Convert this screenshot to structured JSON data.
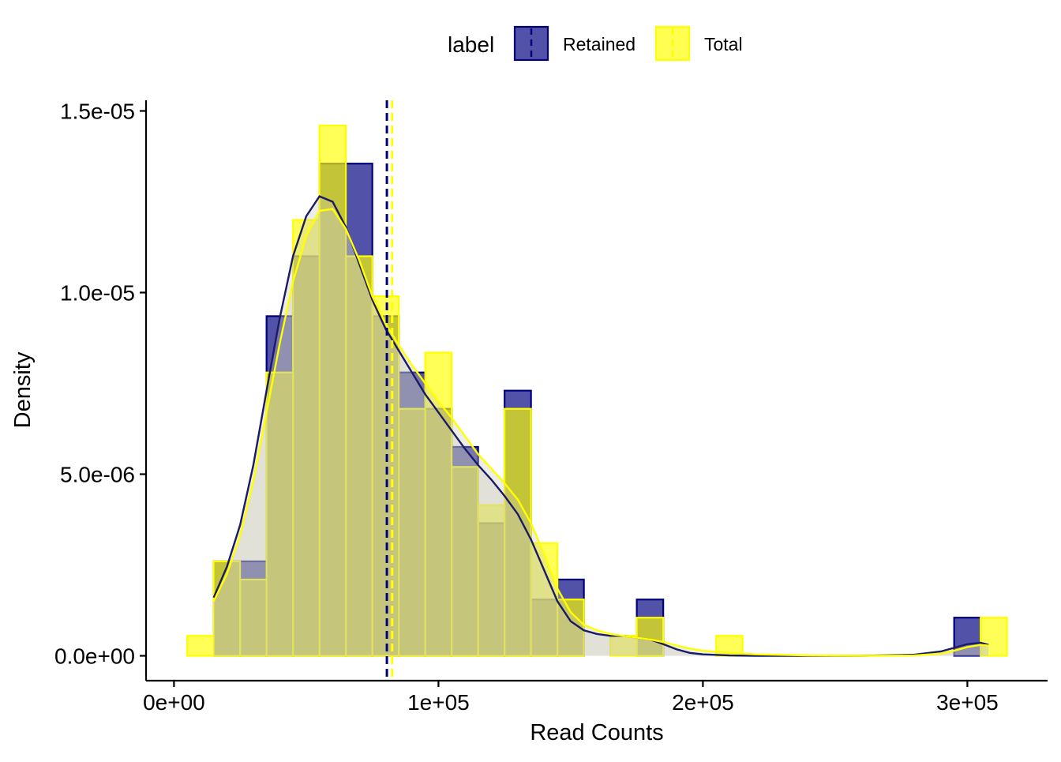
{
  "chart_data": {
    "type": "bar",
    "subtype": "overlaid density histogram with kernel density curves",
    "xlabel": "Read Counts",
    "ylabel": "Density",
    "xlim": [
      -10000,
      333000
    ],
    "ylim": [
      -7e-07,
      1.53e-05
    ],
    "x_ticks": [
      {
        "value": 0,
        "label": "0e+00"
      },
      {
        "value": 100000,
        "label": "1e+05"
      },
      {
        "value": 200000,
        "label": "2e+05"
      },
      {
        "value": 300000,
        "label": "3e+05"
      }
    ],
    "y_ticks": [
      {
        "value": 0,
        "label": "0.0e+00"
      },
      {
        "value": 5e-06,
        "label": "5.0e-06"
      },
      {
        "value": 1e-05,
        "label": "1.0e-05"
      },
      {
        "value": 1.5e-05,
        "label": "1.5e-05"
      }
    ],
    "legend": {
      "title": "label",
      "position": "top",
      "entries": [
        "Retained",
        "Total"
      ]
    },
    "grid": false,
    "series": [
      {
        "name": "Retained",
        "color": "#00007f",
        "bins": [
          {
            "x0": 15000,
            "x1": 25000,
            "value": 2.6e-06
          },
          {
            "x0": 25000,
            "x1": 35000,
            "value": 2.6e-06
          },
          {
            "x0": 35000,
            "x1": 45000,
            "value": 9.35e-06
          },
          {
            "x0": 45000,
            "x1": 55000,
            "value": 1.1e-05
          },
          {
            "x0": 55000,
            "x1": 65000,
            "value": 1.355e-05
          },
          {
            "x0": 65000,
            "x1": 75000,
            "value": 1.355e-05
          },
          {
            "x0": 75000,
            "x1": 85000,
            "value": 9.35e-06
          },
          {
            "x0": 85000,
            "x1": 95000,
            "value": 7.8e-06
          },
          {
            "x0": 95000,
            "x1": 105000,
            "value": 6.8e-06
          },
          {
            "x0": 105000,
            "x1": 115000,
            "value": 5.75e-06
          },
          {
            "x0": 115000,
            "x1": 125000,
            "value": 3.65e-06
          },
          {
            "x0": 125000,
            "x1": 135000,
            "value": 7.3e-06
          },
          {
            "x0": 135000,
            "x1": 145000,
            "value": 1.55e-06
          },
          {
            "x0": 145000,
            "x1": 155000,
            "value": 2.1e-06
          },
          {
            "x0": 175000,
            "x1": 185000,
            "value": 1.55e-06
          },
          {
            "x0": 295000,
            "x1": 305000,
            "value": 1.05e-06
          }
        ],
        "density_curve": {
          "x": [
            15000,
            20000,
            25000,
            30000,
            35000,
            40000,
            45000,
            50000,
            55000,
            60000,
            65000,
            70000,
            75000,
            80000,
            85000,
            90000,
            95000,
            100000,
            105000,
            110000,
            115000,
            120000,
            125000,
            130000,
            135000,
            140000,
            145000,
            150000,
            155000,
            160000,
            165000,
            170000,
            175000,
            180000,
            185000,
            190000,
            195000,
            200000,
            210000,
            220000,
            240000,
            260000,
            280000,
            290000,
            295000,
            300000,
            305000,
            308000
          ],
          "y": [
            1.6e-06,
            2.45e-06,
            3.6e-06,
            5.25e-06,
            7.3e-06,
            9.3e-06,
            1.1e-05,
            1.21e-05,
            1.265e-05,
            1.25e-05,
            1.18e-05,
            1.08e-05,
            9.8e-06,
            9e-06,
            8.4e-06,
            7.8e-06,
            7.2e-06,
            6.7e-06,
            6.2e-06,
            5.7e-06,
            5.25e-06,
            4.85e-06,
            4.4e-06,
            3.9e-06,
            3.2e-06,
            2.35e-06,
            1.5e-06,
            9.5e-07,
            7e-07,
            6e-07,
            5.5e-07,
            5.5e-07,
            5e-07,
            4.5e-07,
            3.2e-07,
            1.8e-07,
            8e-08,
            4e-08,
            1e-08,
            0.0,
            0.0,
            0.0,
            3e-08,
            1.2e-07,
            2.2e-07,
            3.2e-07,
            3.6e-07,
            3e-07
          ]
        },
        "mean": 80500
      },
      {
        "name": "Total",
        "color": "#ffff00",
        "bins": [
          {
            "x0": 5000,
            "x1": 15000,
            "value": 5.5e-07
          },
          {
            "x0": 15000,
            "x1": 25000,
            "value": 2.6e-06
          },
          {
            "x0": 25000,
            "x1": 35000,
            "value": 2.1e-06
          },
          {
            "x0": 35000,
            "x1": 45000,
            "value": 7.8e-06
          },
          {
            "x0": 45000,
            "x1": 55000,
            "value": 1.2e-05
          },
          {
            "x0": 55000,
            "x1": 65000,
            "value": 1.46e-05
          },
          {
            "x0": 65000,
            "x1": 75000,
            "value": 1.1e-05
          },
          {
            "x0": 75000,
            "x1": 85000,
            "value": 9.9e-06
          },
          {
            "x0": 85000,
            "x1": 95000,
            "value": 6.8e-06
          },
          {
            "x0": 95000,
            "x1": 105000,
            "value": 8.35e-06
          },
          {
            "x0": 105000,
            "x1": 115000,
            "value": 5.2e-06
          },
          {
            "x0": 115000,
            "x1": 125000,
            "value": 4.15e-06
          },
          {
            "x0": 125000,
            "x1": 135000,
            "value": 6.8e-06
          },
          {
            "x0": 135000,
            "x1": 145000,
            "value": 3.1e-06
          },
          {
            "x0": 145000,
            "x1": 155000,
            "value": 1.55e-06
          },
          {
            "x0": 165000,
            "x1": 175000,
            "value": 5.5e-07
          },
          {
            "x0": 175000,
            "x1": 185000,
            "value": 1.05e-06
          },
          {
            "x0": 205000,
            "x1": 215000,
            "value": 5.5e-07
          },
          {
            "x0": 305000,
            "x1": 315000,
            "value": 1.05e-06
          }
        ],
        "density_curve": {
          "x": [
            15000,
            20000,
            25000,
            30000,
            35000,
            40000,
            45000,
            50000,
            55000,
            60000,
            65000,
            70000,
            75000,
            80000,
            85000,
            90000,
            95000,
            100000,
            105000,
            110000,
            115000,
            120000,
            125000,
            130000,
            135000,
            140000,
            145000,
            150000,
            155000,
            160000,
            165000,
            170000,
            175000,
            180000,
            185000,
            190000,
            195000,
            200000,
            210000,
            220000,
            240000,
            260000,
            280000,
            290000,
            295000,
            300000,
            305000,
            308000
          ],
          "y": [
            1.5e-06,
            2.25e-06,
            3.3e-06,
            4.8e-06,
            6.7e-06,
            8.6e-06,
            1.03e-05,
            1.155e-05,
            1.225e-05,
            1.23e-05,
            1.175e-05,
            1.09e-05,
            9.9e-06,
            9.15e-06,
            8.55e-06,
            8e-06,
            7.5e-06,
            7e-06,
            6.55e-06,
            6.05e-06,
            5.55e-06,
            5.15e-06,
            4.75e-06,
            4.3e-06,
            3.65e-06,
            2.8e-06,
            1.85e-06,
            1.2e-06,
            8.5e-07,
            7e-07,
            6e-07,
            5.5e-07,
            5e-07,
            4.5e-07,
            3.8e-07,
            2.8e-07,
            2e-07,
            1.4e-07,
            8e-08,
            4e-08,
            1e-08,
            0.0,
            1e-08,
            6e-08,
            1.4e-07,
            2.4e-07,
            3e-07,
            2.8e-07
          ]
        },
        "mean": 82500
      }
    ]
  }
}
